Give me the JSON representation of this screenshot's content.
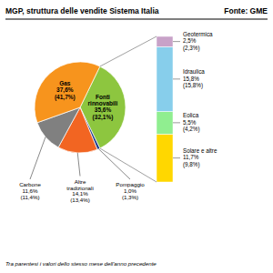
{
  "chart_data": [
    {
      "type": "pie",
      "title": "MGP, struttura delle vendite Sistema Italia",
      "source": "Fonte: GME",
      "footnote": "Tra parentesi i valori dello stesso mese dell'anno precedente",
      "categories": [
        "Fonti rinnovabili",
        "Pompaggio",
        "Altre tradizionali",
        "Carbone",
        "Gas"
      ],
      "values": [
        35.6,
        1.0,
        14.1,
        11.6,
        37.6
      ],
      "value_labels": [
        "35,6%",
        "1,0%",
        "14,1%",
        "11,6%",
        "37,6%"
      ],
      "previous_value_labels": [
        "(32,1%)",
        "(1,3%)",
        "(13,4%)",
        "(11,4%)",
        "(41,7%)"
      ],
      "colors": [
        "#8dc63f",
        "#1a3a8a",
        "#f26522",
        "#808080",
        "#f7941d"
      ],
      "data_labels": true
    },
    {
      "type": "bar",
      "stacked": true,
      "categories": [
        "Geotermica",
        "Idraulica",
        "Eolica",
        "Solare e altre"
      ],
      "values": [
        2.5,
        15.8,
        5.5,
        11.7
      ],
      "value_labels": [
        "2,5%",
        "15,8%",
        "5,5%",
        "11,7%"
      ],
      "previous_value_labels": [
        "(2,3%)",
        "(15,8%)",
        "(4,2%)",
        "(9,8%)"
      ],
      "colors": [
        "#c8a2c8",
        "#87ceeb",
        "#90ee90",
        "#ffd700"
      ],
      "ylim": [
        0,
        35.5
      ],
      "tick_labels": false,
      "data_labels": true
    }
  ]
}
